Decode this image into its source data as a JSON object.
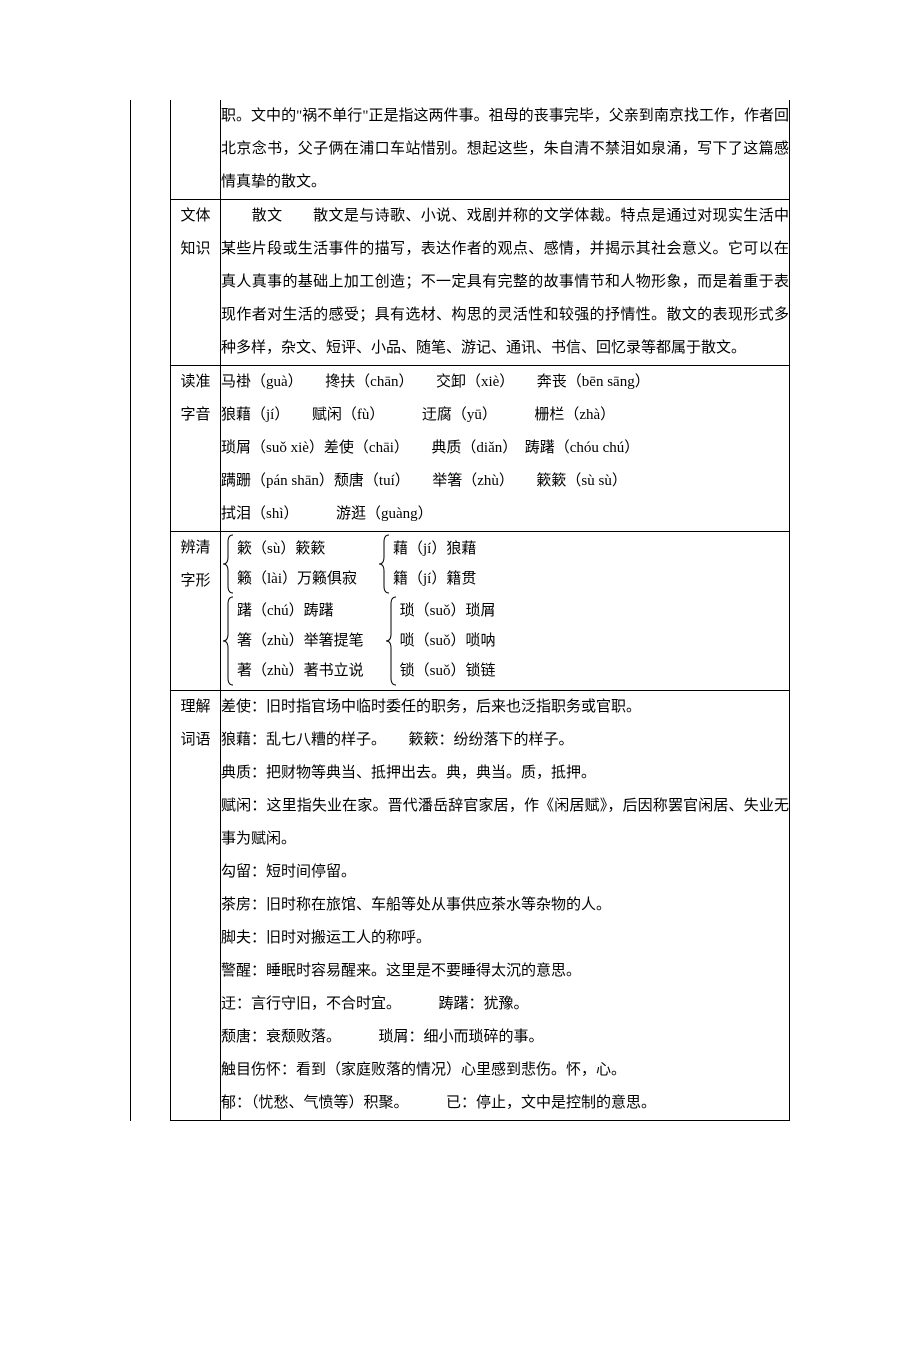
{
  "colors": {
    "page_background": "#ffffff",
    "text": "#000000",
    "border": "#000000"
  },
  "typography": {
    "font_family": "SimSun",
    "font_size_pt": 11,
    "line_height": 2.2
  },
  "rows": [
    {
      "label": "",
      "content_lines": [
        "职。文中的\"祸不单行\"正是指这两件事。祖母的丧事完毕，父亲到南京找工作，作者回北京念书，父子俩在浦口车站惜别。想起这些，朱自清不禁泪如泉涌，写下了这篇感情真挚的散文。"
      ],
      "is_continuation": true
    },
    {
      "label": "文体知识",
      "content_lines": [
        "　　散文　　散文是与诗歌、小说、戏剧并称的文学体裁。特点是通过对现实生活中某些片段或生活事件的描写，表达作者的观点、感情，并揭示其社会意义。它可以在真人真事的基础上加工创造；不一定具有完整的故事情节和人物形象，而是着重于表现作者对生活的感受；具有选材、构思的灵活性和较强的抒情性。散文的表现形式多种多样，杂文、短评、小品、随笔、游记、通讯、书信、回忆录等都属于散文。"
      ]
    },
    {
      "label": "读准字音",
      "pinyin_lines": [
        "马褂（guà）　　搀扶（chān）　　交卸（xiè）　　奔丧（bēn sāng）",
        "狼藉（jí）　　赋闲（fù）　　　迂腐（yū）　　　栅栏（zhà）",
        "琐屑（suǒ xiè）差使（chāi）　　典质（diǎn）　踌躇（chóu chú）",
        "蹒跚（pán shān）颓唐（tuí）　　举箸（zhù）　　簌簌（sù sù）",
        "拭泪（shì）　　　游逛（guàng）"
      ]
    },
    {
      "label": "辨清字形",
      "brace_rows": [
        {
          "groups": [
            {
              "items": [
                "簌（sù）簌簌",
                "籁（lài）万籁俱寂"
              ]
            },
            {
              "items": [
                "藉（jí）狼藉",
                "籍（jí）籍贯"
              ]
            }
          ]
        },
        {
          "groups": [
            {
              "items": [
                "躇（chú）踌躇",
                "箸（zhù）举箸提笔",
                "著（zhù）著书立说"
              ]
            },
            {
              "items": [
                "琐（suǒ）琐屑",
                "唢（suǒ）唢呐",
                "锁（suǒ）锁链"
              ]
            }
          ]
        }
      ]
    },
    {
      "label": "理解词语",
      "vocab_lines": [
        "差使：旧时指官场中临时委任的职务，后来也泛指职务或官职。",
        "狼藉：乱七八糟的样子。　　簌簌：纷纷落下的样子。",
        "典质：把财物等典当、抵押出去。典，典当。质，抵押。",
        "赋闲：这里指失业在家。晋代潘岳辞官家居，作《闲居赋》，后因称罢官闲居、失业无事为赋闲。",
        "勾留：短时间停留。",
        "茶房：旧时称在旅馆、车船等处从事供应茶水等杂物的人。",
        "脚夫：旧时对搬运工人的称呼。",
        "警醒：睡眠时容易醒来。这里是不要睡得太沉的意思。",
        "迂：言行守旧，不合时宜。　　　踌躇：犹豫。",
        "颓唐：衰颓败落。　　　琐屑：细小而琐碎的事。",
        "触目伤怀：看到（家庭败落的情况）心里感到悲伤。怀，心。",
        "郁：（忧愁、气愤等）积聚。　　　已：停止，文中是控制的意思。"
      ]
    }
  ]
}
